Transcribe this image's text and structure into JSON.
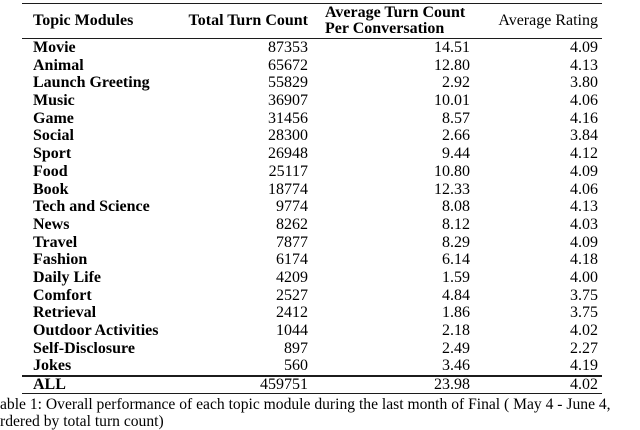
{
  "table": {
    "columns": [
      {
        "label": "Topic Modules"
      },
      {
        "label": "Total Turn Count"
      },
      {
        "label_line1": "Average Turn Count",
        "label_line2": "Per Conversation"
      },
      {
        "label": "Average Rating"
      }
    ],
    "rows": [
      {
        "topic": "Movie",
        "total_turn_count": "87353",
        "avg_turn_count_per_conversation": "14.51",
        "avg_rating": "4.09"
      },
      {
        "topic": "Animal",
        "total_turn_count": "65672",
        "avg_turn_count_per_conversation": "12.80",
        "avg_rating": "4.13"
      },
      {
        "topic": "Launch Greeting",
        "total_turn_count": "55829",
        "avg_turn_count_per_conversation": "2.92",
        "avg_rating": "3.80"
      },
      {
        "topic": "Music",
        "total_turn_count": "36907",
        "avg_turn_count_per_conversation": "10.01",
        "avg_rating": "4.06"
      },
      {
        "topic": "Game",
        "total_turn_count": "31456",
        "avg_turn_count_per_conversation": "8.57",
        "avg_rating": "4.16"
      },
      {
        "topic": "Social",
        "total_turn_count": "28300",
        "avg_turn_count_per_conversation": "2.66",
        "avg_rating": "3.84"
      },
      {
        "topic": "Sport",
        "total_turn_count": "26948",
        "avg_turn_count_per_conversation": "9.44",
        "avg_rating": "4.12"
      },
      {
        "topic": "Food",
        "total_turn_count": "25117",
        "avg_turn_count_per_conversation": "10.80",
        "avg_rating": "4.09"
      },
      {
        "topic": "Book",
        "total_turn_count": "18774",
        "avg_turn_count_per_conversation": "12.33",
        "avg_rating": "4.06"
      },
      {
        "topic": "Tech and Science",
        "total_turn_count": "9774",
        "avg_turn_count_per_conversation": "8.08",
        "avg_rating": "4.13"
      },
      {
        "topic": "News",
        "total_turn_count": "8262",
        "avg_turn_count_per_conversation": "8.12",
        "avg_rating": "4.03"
      },
      {
        "topic": "Travel",
        "total_turn_count": "7877",
        "avg_turn_count_per_conversation": "8.29",
        "avg_rating": "4.09"
      },
      {
        "topic": "Fashion",
        "total_turn_count": "6174",
        "avg_turn_count_per_conversation": "6.14",
        "avg_rating": "4.18"
      },
      {
        "topic": "Daily Life",
        "total_turn_count": "4209",
        "avg_turn_count_per_conversation": "1.59",
        "avg_rating": "4.00"
      },
      {
        "topic": "Comfort",
        "total_turn_count": "2527",
        "avg_turn_count_per_conversation": "4.84",
        "avg_rating": "3.75"
      },
      {
        "topic": "Retrieval",
        "total_turn_count": "2412",
        "avg_turn_count_per_conversation": "1.86",
        "avg_rating": "3.75"
      },
      {
        "topic": "Outdoor Activities",
        "total_turn_count": "1044",
        "avg_turn_count_per_conversation": "2.18",
        "avg_rating": "4.02"
      },
      {
        "topic": "Self-Disclosure",
        "total_turn_count": "897",
        "avg_turn_count_per_conversation": "2.49",
        "avg_rating": "2.27"
      },
      {
        "topic": "Jokes",
        "total_turn_count": "560",
        "avg_turn_count_per_conversation": "3.46",
        "avg_rating": "4.19"
      }
    ],
    "footer_row": {
      "topic": "ALL",
      "total_turn_count": "459751",
      "avg_turn_count_per_conversation": "23.98",
      "avg_rating": "4.02"
    }
  },
  "caption": {
    "line1": "able 1: Overall performance of each topic module during the last month of Final ( May 4 - June 4,",
    "line2": "rdered by total turn count)"
  }
}
